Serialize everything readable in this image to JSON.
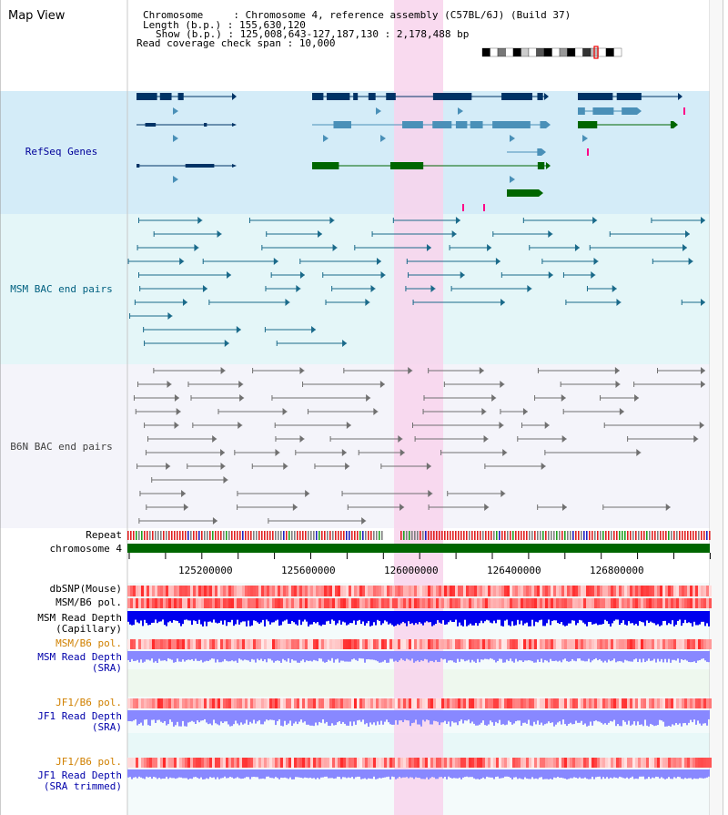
{
  "title": "Map View",
  "header": {
    "chromosome_key": "Chromosome     : ",
    "chromosome_val": "Chromosome 4, reference assembly (C57BL/6J) (Build 37)",
    "length_key": "Length (b.p.) : ",
    "length_val": "155,630,120",
    "show_key": "Show (b.p.) : ",
    "show_val": "125,008,643-127,187,130 : 2,178,488 bp",
    "span_key": "Read coverage check span : ",
    "span_val": "10,000"
  },
  "tracks": {
    "refseq": "RefSeq Genes",
    "msm_bac": "MSM BAC end pairs",
    "b6n_bac": "B6N BAC end pairs",
    "repeat": "Repeat",
    "chromosome": "chromosome 4",
    "dbsnp": "dbSNP(Mouse)",
    "msm_b6_pol": "MSM/B6 pol.",
    "msm_depth_cap_1": "MSM Read Depth",
    "msm_depth_cap_2": "(Capillary)",
    "msm_b6_pol2": "MSM/B6 pol.",
    "msm_depth_sra_1": "MSM Read Depth",
    "msm_depth_sra_2": "(SRA)",
    "jf1_b6_pol": "JF1/B6 pol.",
    "jf1_depth_sra_1": "JF1 Read Depth",
    "jf1_depth_sra_2": "(SRA)",
    "jf1_b6_pol2": "JF1/B6 pol.",
    "jf1_depth_trim_1": "JF1 Read Depth",
    "jf1_depth_trim_2": "(SRA trimmed)"
  },
  "axis": {
    "ticks": [
      "125200000",
      "125600000",
      "126000000",
      "126400000",
      "126800000"
    ]
  },
  "colors": {
    "refseq_bg": "#d4ecf8",
    "msm_bg": "#e4f6f8",
    "b6n_bg": "#f4f4fa",
    "highlight": "#f8d4ec",
    "gene_navy": "#003366",
    "gene_light": "#4a90b8",
    "gene_green": "#006600",
    "bac_teal": "#1a6a8a",
    "bac_gray": "#707070",
    "chrom_green": "#006600",
    "snp_red": "#ff5050",
    "depth_blue": "#0000ee",
    "depth_light": "#8888ff"
  }
}
